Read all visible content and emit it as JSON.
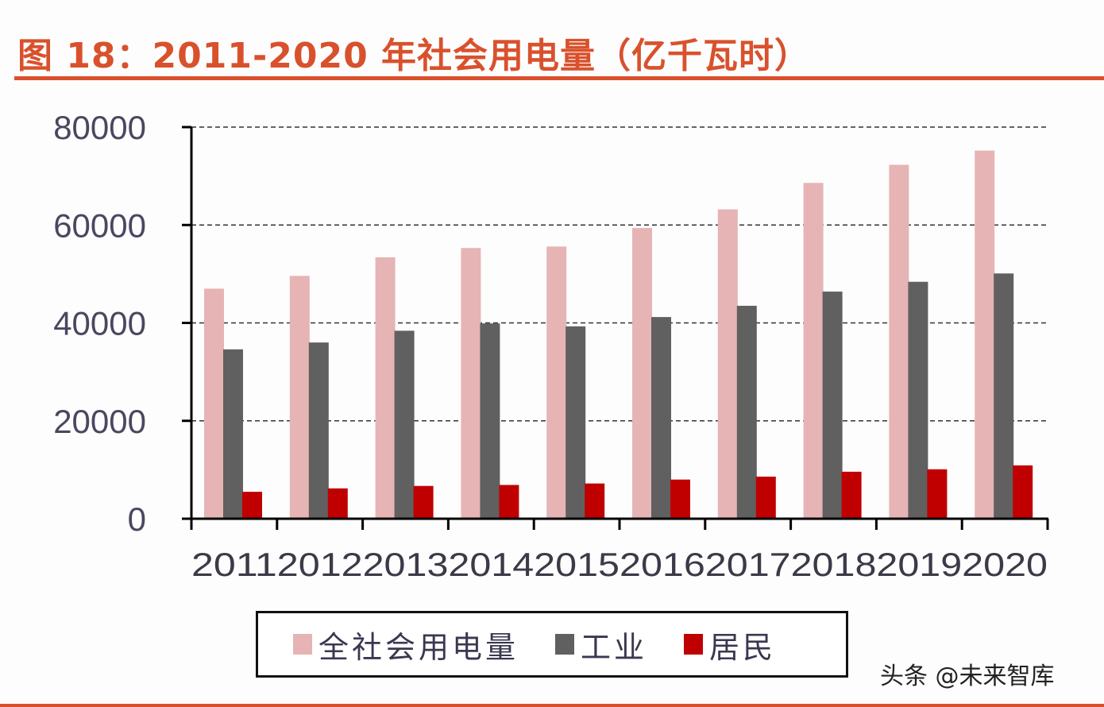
{
  "header": {
    "title": "图 18：2011-2020 年社会用电量（亿千瓦时）"
  },
  "colors": {
    "accent": "#d9512c",
    "total": "#e6b4b4",
    "industrial": "#606060",
    "residential": "#c00000"
  },
  "legend": {
    "items": [
      {
        "label": "全社会用电量",
        "color": "#e6b4b4"
      },
      {
        "label": "工业",
        "color": "#606060"
      },
      {
        "label": "居民",
        "color": "#c00000"
      }
    ]
  },
  "watermark": "头条 @未来智库",
  "chart_data": {
    "type": "bar",
    "title": "图 18：2011-2020 年社会用电量（亿千瓦时）",
    "xlabel": "",
    "ylabel": "",
    "ylim": [
      0,
      80000
    ],
    "yticks": [
      0,
      20000,
      40000,
      60000,
      80000
    ],
    "grid": true,
    "legend_position": "bottom",
    "categories": [
      "2011",
      "2012",
      "2013",
      "2014",
      "2015",
      "2016",
      "2017",
      "2018",
      "2019",
      "2020"
    ],
    "series": [
      {
        "name": "全社会用电量",
        "color": "#e6b4b4",
        "values": [
          47000,
          49600,
          53400,
          55300,
          55600,
          59400,
          63200,
          68600,
          72300,
          75200
        ]
      },
      {
        "name": "工业",
        "color": "#606060",
        "values": [
          34600,
          36000,
          38400,
          39900,
          39300,
          41200,
          43500,
          46400,
          48400,
          50100
        ]
      },
      {
        "name": "居民",
        "color": "#c00000",
        "values": [
          5500,
          6200,
          6700,
          6900,
          7200,
          8000,
          8600,
          9600,
          10100,
          10900
        ]
      }
    ]
  }
}
